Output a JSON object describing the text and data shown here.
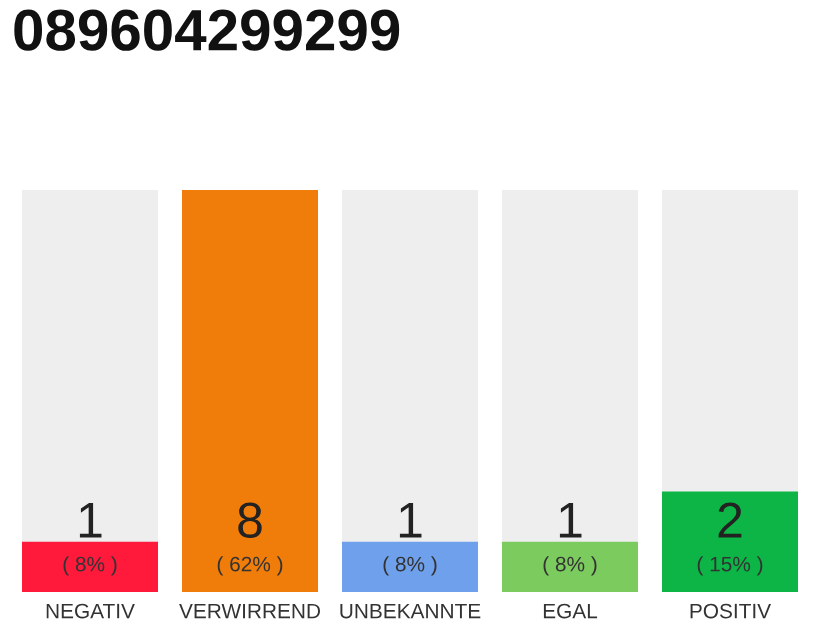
{
  "chart_data": {
    "type": "bar",
    "title": "089604299299",
    "categories": [
      "NEGATIV",
      "VERWIRREND",
      "UNBEKANNTE",
      "EGAL",
      "POSITIV"
    ],
    "values": [
      1,
      8,
      1,
      1,
      2
    ],
    "colors": [
      "#ff1a3c",
      "#f07d0a",
      "#6fa0ec",
      "#7ccb5f",
      "#0cb545"
    ],
    "ylim": [
      0,
      8
    ],
    "tick_labels": "x",
    "data_labels": true,
    "grid": false,
    "annotations": [
      {
        "text": "( 8% )",
        "x": "NEGATIV",
        "y": 0
      },
      {
        "text": "( 62% )",
        "x": "VERWIRREND",
        "y": 0
      },
      {
        "text": "( 8% )",
        "x": "UNBEKANNTE",
        "y": 0
      },
      {
        "text": "( 8% )",
        "x": "EGAL",
        "y": 0
      },
      {
        "text": "( 15% )",
        "x": "POSITIV",
        "y": 0
      }
    ]
  }
}
